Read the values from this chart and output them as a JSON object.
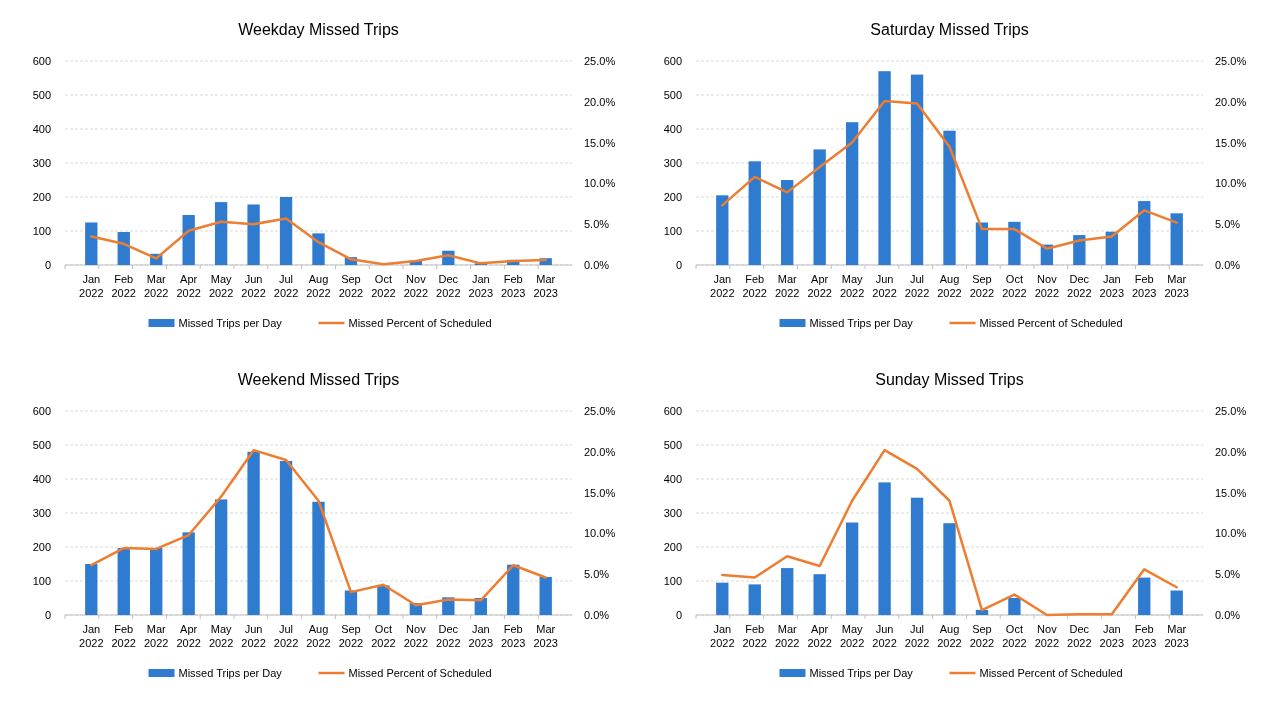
{
  "chart_data": [
    {
      "type": "bar",
      "title": "Weekday Missed Trips",
      "categories": [
        "Jan 2022",
        "Feb 2022",
        "Mar 2022",
        "Apr 2022",
        "May 2022",
        "Jun 2022",
        "Jul 2022",
        "Aug 2022",
        "Sep 2022",
        "Oct 2022",
        "Nov 2022",
        "Dec 2022",
        "Jan 2023",
        "Feb 2023",
        "Mar 2023"
      ],
      "series": [
        {
          "name": "Missed Trips per Day",
          "color": "#2e7bcf",
          "values": [
            125,
            97,
            33,
            147,
            185,
            178,
            200,
            93,
            23,
            null,
            12,
            42,
            5,
            15,
            20
          ]
        },
        {
          "name": "Missed Percent of Scheduled",
          "type": "line",
          "axis": "y2",
          "color": "#ed7d31",
          "values": [
            3.5,
            2.6,
            0.8,
            4.2,
            5.3,
            5.0,
            5.7,
            2.8,
            0.7,
            0.1,
            0.5,
            1.2,
            0.2,
            0.5,
            0.6
          ]
        }
      ],
      "ylim": [
        0,
        600
      ],
      "yticks": [
        0,
        100,
        200,
        300,
        400,
        500,
        600
      ],
      "y2lim": [
        0,
        25
      ],
      "y2ticks": [
        {
          "value": 0,
          "label": "0.0%"
        },
        {
          "value": 5,
          "label": "5.0%"
        },
        {
          "value": 10,
          "label": "10.0%"
        },
        {
          "value": 15,
          "label": "15.0%"
        },
        {
          "value": 20,
          "label": "20.0%"
        },
        {
          "value": 25,
          "label": "25.0%"
        }
      ],
      "grid": "y",
      "legend": "bottom",
      "marker": "none",
      "line_style": "solid"
    },
    {
      "type": "bar",
      "title": "Saturday Missed Trips",
      "categories": [
        "Jan 2022",
        "Feb 2022",
        "Mar 2022",
        "Apr 2022",
        "May 2022",
        "Jun 2022",
        "Jul 2022",
        "Aug 2022",
        "Sep 2022",
        "Oct 2022",
        "Nov 2022",
        "Dec 2022",
        "Jan 2023",
        "Feb 2023",
        "Mar 2023"
      ],
      "series": [
        {
          "name": "Missed Trips per Day",
          "color": "#2e7bcf",
          "values": [
            205,
            305,
            250,
            340,
            420,
            570,
            560,
            395,
            125,
            127,
            60,
            88,
            98,
            188,
            152
          ]
        },
        {
          "name": "Missed Percent of Scheduled",
          "type": "line",
          "axis": "y2",
          "color": "#ed7d31",
          "values": [
            7.3,
            10.8,
            8.9,
            12.0,
            15.0,
            20.1,
            19.8,
            14.5,
            4.4,
            4.4,
            2.0,
            3.0,
            3.5,
            6.7,
            5.2
          ]
        }
      ],
      "ylim": [
        0,
        600
      ],
      "yticks": [
        0,
        100,
        200,
        300,
        400,
        500,
        600
      ],
      "y2lim": [
        0,
        25
      ],
      "y2ticks": [
        {
          "value": 0,
          "label": "0.0%"
        },
        {
          "value": 5,
          "label": "5.0%"
        },
        {
          "value": 10,
          "label": "10.0%"
        },
        {
          "value": 15,
          "label": "15.0%"
        },
        {
          "value": 20,
          "label": "20.0%"
        },
        {
          "value": 25,
          "label": "25.0%"
        }
      ],
      "grid": "y",
      "legend": "bottom",
      "marker": "none",
      "line_style": "solid"
    },
    {
      "type": "bar",
      "title": "Weekend Missed Trips",
      "categories": [
        "Jan 2022",
        "Feb 2022",
        "Mar 2022",
        "Apr 2022",
        "May 2022",
        "Jun 2022",
        "Jul 2022",
        "Aug 2022",
        "Sep 2022",
        "Oct 2022",
        "Nov 2022",
        "Dec 2022",
        "Jan 2023",
        "Feb 2023",
        "Mar 2023"
      ],
      "series": [
        {
          "name": "Missed Trips per Day",
          "color": "#2e7bcf",
          "values": [
            150,
            197,
            197,
            243,
            340,
            480,
            453,
            333,
            72,
            87,
            35,
            52,
            50,
            148,
            112
          ]
        },
        {
          "name": "Missed Percent of Scheduled",
          "type": "line",
          "axis": "y2",
          "color": "#ed7d31",
          "values": [
            6.1,
            8.2,
            8.1,
            9.8,
            14.5,
            20.2,
            19.0,
            14.0,
            2.8,
            3.7,
            1.2,
            1.9,
            1.8,
            6.1,
            4.6
          ]
        }
      ],
      "ylim": [
        0,
        600
      ],
      "yticks": [
        0,
        100,
        200,
        300,
        400,
        500,
        600
      ],
      "y2lim": [
        0,
        25
      ],
      "y2ticks": [
        {
          "value": 0,
          "label": "0.0%"
        },
        {
          "value": 5,
          "label": "5.0%"
        },
        {
          "value": 10,
          "label": "10.0%"
        },
        {
          "value": 15,
          "label": "15.0%"
        },
        {
          "value": 20,
          "label": "20.0%"
        },
        {
          "value": 25,
          "label": "25.0%"
        }
      ],
      "grid": "y",
      "legend": "bottom",
      "marker": "none",
      "line_style": "solid"
    },
    {
      "type": "bar",
      "title": "Sunday Missed Trips",
      "categories": [
        "Jan 2022",
        "Feb 2022",
        "Mar 2022",
        "Apr 2022",
        "May 2022",
        "Jun 2022",
        "Jul 2022",
        "Aug 2022",
        "Sep 2022",
        "Oct 2022",
        "Nov 2022",
        "Dec 2022",
        "Jan 2023",
        "Feb 2023",
        "Mar 2023"
      ],
      "series": [
        {
          "name": "Missed Trips per Day",
          "color": "#2e7bcf",
          "values": [
            95,
            90,
            138,
            120,
            272,
            390,
            345,
            270,
            15,
            50,
            0,
            0,
            0,
            110,
            72
          ]
        },
        {
          "name": "Missed Percent of Scheduled",
          "type": "line",
          "axis": "y2",
          "color": "#ed7d31",
          "values": [
            4.9,
            4.6,
            7.2,
            6.0,
            14.0,
            20.2,
            17.9,
            14.0,
            0.6,
            2.5,
            0,
            0.1,
            0.1,
            5.6,
            3.4
          ]
        }
      ],
      "ylim": [
        0,
        600
      ],
      "yticks": [
        0,
        100,
        200,
        300,
        400,
        500,
        600
      ],
      "y2lim": [
        0,
        25
      ],
      "y2ticks": [
        {
          "value": 0,
          "label": "0.0%"
        },
        {
          "value": 5,
          "label": "5.0%"
        },
        {
          "value": 10,
          "label": "10.0%"
        },
        {
          "value": 15,
          "label": "15.0%"
        },
        {
          "value": 20,
          "label": "20.0%"
        },
        {
          "value": 25,
          "label": "25.0%"
        }
      ],
      "grid": "y",
      "legend": "bottom",
      "marker": "none",
      "line_style": "solid"
    }
  ]
}
